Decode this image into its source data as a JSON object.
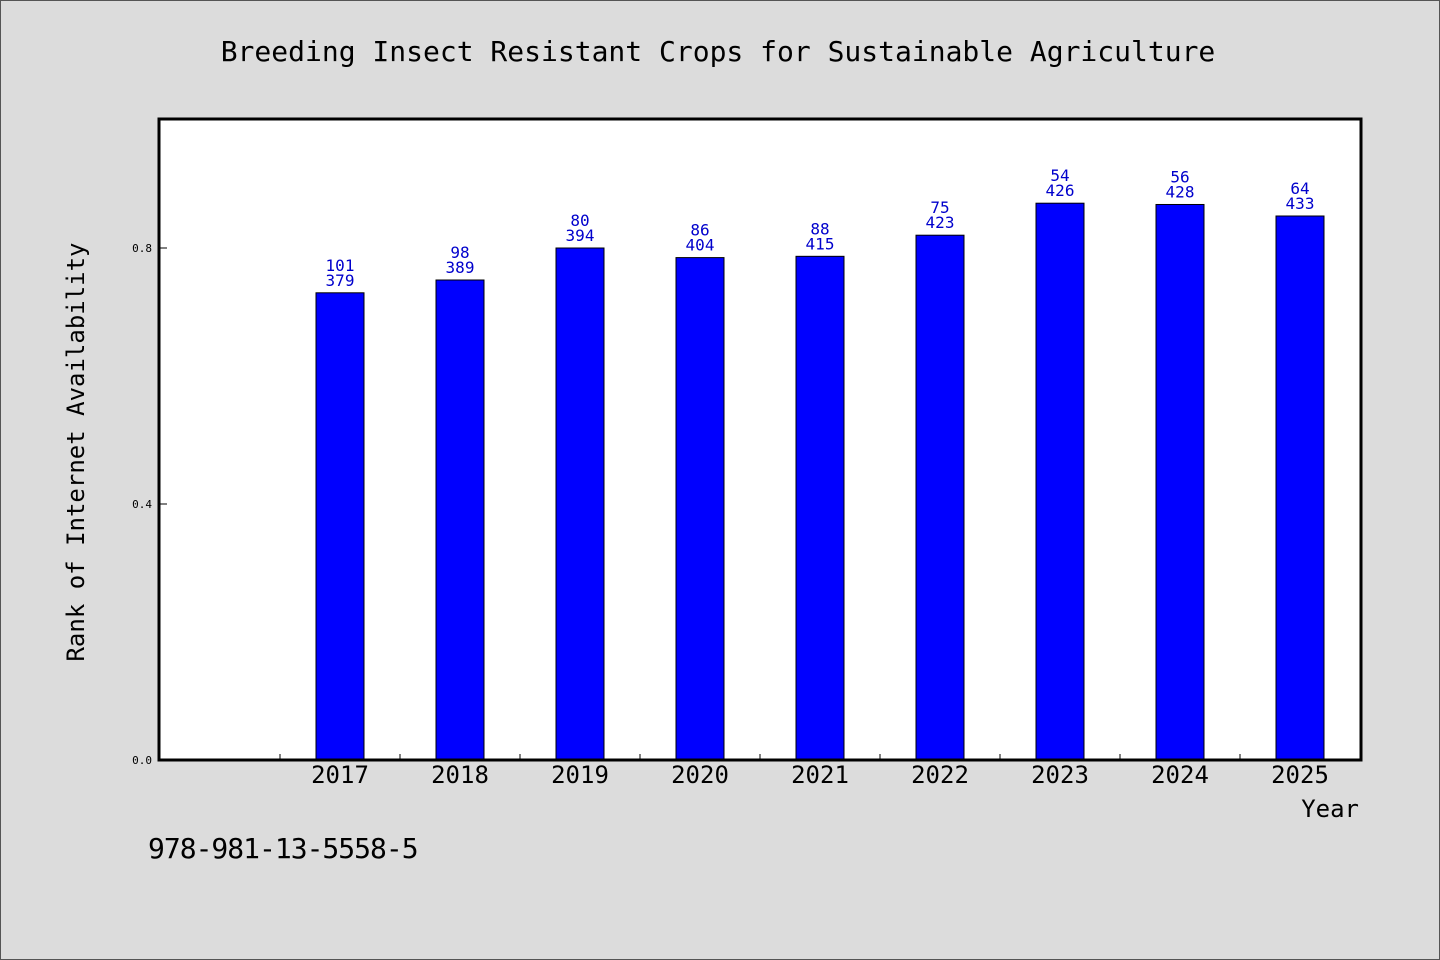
{
  "chart_data": {
    "type": "bar",
    "title": "Breeding Insect Resistant Crops for Sustainable Agriculture",
    "xlabel": "Year",
    "ylabel": "Rank of Internet Availability",
    "categories": [
      "2017",
      "2018",
      "2019",
      "2020",
      "2021",
      "2022",
      "2023",
      "2024",
      "2025"
    ],
    "values": [
      0.73,
      0.75,
      0.8,
      0.785,
      0.787,
      0.82,
      0.87,
      0.868,
      0.85
    ],
    "label_top": [
      "101",
      "98",
      "80",
      "86",
      "88",
      "75",
      "54",
      "56",
      "64"
    ],
    "label_bottom": [
      "379",
      "389",
      "394",
      "404",
      "415",
      "423",
      "426",
      "428",
      "433"
    ],
    "yticks": [
      "0.0",
      "0.4",
      "0.8"
    ],
    "ytick_values": [
      0.0,
      0.4,
      0.8
    ],
    "ylim": [
      0,
      0.8
    ],
    "grid": false,
    "bar_color": "#0000ff",
    "label_color": "#0000cc",
    "background": "#dcdcdc"
  },
  "footer": {
    "code": "978-981-13-5558-5"
  }
}
